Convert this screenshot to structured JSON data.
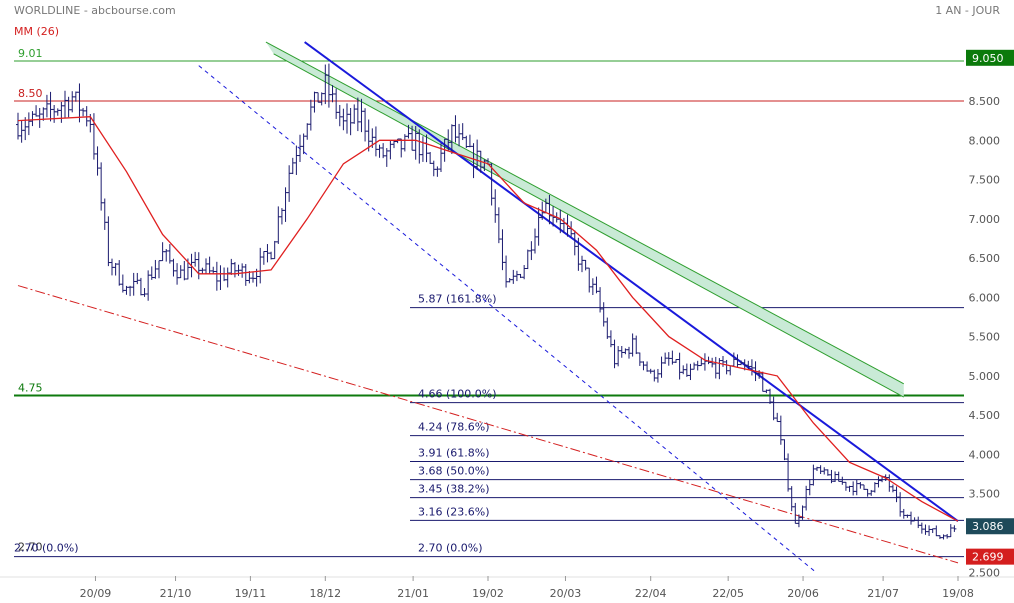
{
  "header": {
    "title": "WORLDLINE - abcbourse.com",
    "period": "1 AN - JOUR",
    "ma_label": "MM (26)"
  },
  "colors": {
    "candle": "#1a1a6e",
    "ma": "#e02020",
    "trend_blue": "#1a1adb",
    "channel_green": "#2e9e2e",
    "channel_fill": "#c9ead6",
    "fib": "#1a1a6e",
    "support_red": "#d42020",
    "level_green": "#2e9e2e",
    "level_red": "#c82020",
    "last_price_bg": "#1e4a5a",
    "low_price_bg": "#d41e1e",
    "high_price_bg": "#0b7a0b"
  },
  "chart_data": {
    "type": "candlestick",
    "title": "WORLDLINE",
    "moving_average_label": "MM (26)",
    "x_ticks": [
      "20/09",
      "21/10",
      "19/11",
      "18/12",
      "21/01",
      "19/02",
      "20/03",
      "22/04",
      "22/05",
      "20/06",
      "21/07",
      "19/08"
    ],
    "y_ticks": [
      "8.500",
      "8.000",
      "7.500",
      "7.000",
      "6.500",
      "6.000",
      "5.500",
      "5.000",
      "4.500",
      "4.000",
      "3.500",
      "3.086",
      "2.500"
    ],
    "ylim": [
      2.5,
      9.1
    ],
    "price_labels": {
      "high": "9.050",
      "last": "3.086",
      "low": "2.699"
    },
    "horizontal_levels": [
      {
        "value": 9.01,
        "label": "9.01",
        "style": "green"
      },
      {
        "value": 8.5,
        "label": "8.50",
        "style": "red"
      },
      {
        "value": 4.75,
        "label": "4.75",
        "style": "green-bold"
      },
      {
        "value": 2.7,
        "label": "2.70",
        "style": "label"
      }
    ],
    "fibonacci": [
      {
        "value": 5.87,
        "label": "5.87  (161.8%)"
      },
      {
        "value": 4.66,
        "label": "4.66  (100.0%)"
      },
      {
        "value": 4.24,
        "label": "4.24  (78.6%)"
      },
      {
        "value": 3.91,
        "label": "3.91  (61.8%)"
      },
      {
        "value": 3.68,
        "label": "3.68  (50.0%)"
      },
      {
        "value": 3.45,
        "label": "3.45  (38.2%)"
      },
      {
        "value": 3.16,
        "label": "3.16  (23.6%)"
      },
      {
        "value": 2.7,
        "label": "2.70  (0.0%)"
      }
    ],
    "fib_left_label": "2.70  (0.0%)",
    "price_series": [
      {
        "d": "2023-08-21",
        "c": 8.2
      },
      {
        "d": "2023-08-28",
        "c": 8.25
      },
      {
        "d": "2023-09-04",
        "c": 8.4
      },
      {
        "d": "2023-09-11",
        "c": 8.55
      },
      {
        "d": "2023-09-18",
        "c": 8.25
      },
      {
        "d": "2023-09-25",
        "c": 6.5
      },
      {
        "d": "2023-10-02",
        "c": 6.1
      },
      {
        "d": "2023-10-09",
        "c": 6.15
      },
      {
        "d": "2023-10-16",
        "c": 6.55
      },
      {
        "d": "2023-10-23",
        "c": 6.3
      },
      {
        "d": "2023-10-30",
        "c": 6.4
      },
      {
        "d": "2023-11-06",
        "c": 6.25
      },
      {
        "d": "2023-11-13",
        "c": 6.35
      },
      {
        "d": "2023-11-20",
        "c": 6.3
      },
      {
        "d": "2023-11-27",
        "c": 6.6
      },
      {
        "d": "2023-12-04",
        "c": 7.6
      },
      {
        "d": "2023-12-11",
        "c": 8.3
      },
      {
        "d": "2023-12-18",
        "c": 8.7
      },
      {
        "d": "2023-12-25",
        "c": 8.2
      },
      {
        "d": "2024-01-01",
        "c": 8.3
      },
      {
        "d": "2024-01-08",
        "c": 7.8
      },
      {
        "d": "2024-01-15",
        "c": 7.9
      },
      {
        "d": "2024-01-22",
        "c": 8.0
      },
      {
        "d": "2024-01-29",
        "c": 7.6
      },
      {
        "d": "2024-02-05",
        "c": 8.1
      },
      {
        "d": "2024-02-12",
        "c": 7.8
      },
      {
        "d": "2024-02-19",
        "c": 7.7
      },
      {
        "d": "2024-02-26",
        "c": 6.1
      },
      {
        "d": "2024-03-04",
        "c": 6.4
      },
      {
        "d": "2024-03-11",
        "c": 7.2
      },
      {
        "d": "2024-03-18",
        "c": 7.0
      },
      {
        "d": "2024-03-25",
        "c": 6.5
      },
      {
        "d": "2024-04-01",
        "c": 6.0
      },
      {
        "d": "2024-04-08",
        "c": 5.2
      },
      {
        "d": "2024-04-15",
        "c": 5.4
      },
      {
        "d": "2024-04-22",
        "c": 5.0
      },
      {
        "d": "2024-04-29",
        "c": 5.2
      },
      {
        "d": "2024-05-06",
        "c": 5.0
      },
      {
        "d": "2024-05-13",
        "c": 5.15
      },
      {
        "d": "2024-05-20",
        "c": 5.1
      },
      {
        "d": "2024-05-27",
        "c": 5.2
      },
      {
        "d": "2024-06-03",
        "c": 5.0
      },
      {
        "d": "2024-06-10",
        "c": 4.4
      },
      {
        "d": "2024-06-17",
        "c": 3.1
      },
      {
        "d": "2024-06-24",
        "c": 3.8
      },
      {
        "d": "2024-07-01",
        "c": 3.7
      },
      {
        "d": "2024-07-08",
        "c": 3.6
      },
      {
        "d": "2024-07-15",
        "c": 3.55
      },
      {
        "d": "2024-07-22",
        "c": 3.7
      },
      {
        "d": "2024-07-29",
        "c": 3.2
      },
      {
        "d": "2024-08-05",
        "c": 3.1
      },
      {
        "d": "2024-08-12",
        "c": 2.95
      },
      {
        "d": "2024-08-19",
        "c": 3.086
      }
    ],
    "ma_series": [
      {
        "d": "2023-08-21",
        "v": 8.25
      },
      {
        "d": "2023-09-18",
        "v": 8.3
      },
      {
        "d": "2023-10-02",
        "v": 7.6
      },
      {
        "d": "2023-10-16",
        "v": 6.8
      },
      {
        "d": "2023-10-30",
        "v": 6.3
      },
      {
        "d": "2023-11-13",
        "v": 6.3
      },
      {
        "d": "2023-11-27",
        "v": 6.35
      },
      {
        "d": "2023-12-11",
        "v": 7.0
      },
      {
        "d": "2023-12-25",
        "v": 7.7
      },
      {
        "d": "2024-01-08",
        "v": 8.0
      },
      {
        "d": "2024-01-22",
        "v": 8.0
      },
      {
        "d": "2024-02-05",
        "v": 7.85
      },
      {
        "d": "2024-02-19",
        "v": 7.7
      },
      {
        "d": "2024-03-04",
        "v": 7.2
      },
      {
        "d": "2024-03-18",
        "v": 7.0
      },
      {
        "d": "2024-04-01",
        "v": 6.6
      },
      {
        "d": "2024-04-15",
        "v": 6.0
      },
      {
        "d": "2024-04-29",
        "v": 5.5
      },
      {
        "d": "2024-05-13",
        "v": 5.2
      },
      {
        "d": "2024-05-27",
        "v": 5.1
      },
      {
        "d": "2024-06-10",
        "v": 5.0
      },
      {
        "d": "2024-06-24",
        "v": 4.4
      },
      {
        "d": "2024-07-08",
        "v": 3.9
      },
      {
        "d": "2024-07-22",
        "v": 3.7
      },
      {
        "d": "2024-08-05",
        "v": 3.4
      },
      {
        "d": "2024-08-19",
        "v": 3.15
      }
    ],
    "trendlines": [
      {
        "kind": "resistance",
        "from": {
          "d": "2023-12-10",
          "v": 9.25
        },
        "to": {
          "d": "2024-08-19",
          "v": 3.15
        }
      },
      {
        "kind": "channel-upper",
        "from": {
          "d": "2023-11-25",
          "v": 9.25
        },
        "to": {
          "d": "2024-07-29",
          "v": 4.9
        }
      },
      {
        "kind": "channel-lower",
        "from": {
          "d": "2023-11-28",
          "v": 9.1
        },
        "to": {
          "d": "2024-07-29",
          "v": 4.73
        }
      },
      {
        "kind": "dashed-channel",
        "from": {
          "d": "2023-10-30",
          "v": 8.95
        },
        "to": {
          "d": "2024-06-25",
          "v": 2.5
        }
      },
      {
        "kind": "long-support",
        "from": {
          "d": "2023-08-21",
          "v": 6.15
        },
        "to": {
          "d": "2024-08-19",
          "v": 2.62
        }
      }
    ]
  }
}
